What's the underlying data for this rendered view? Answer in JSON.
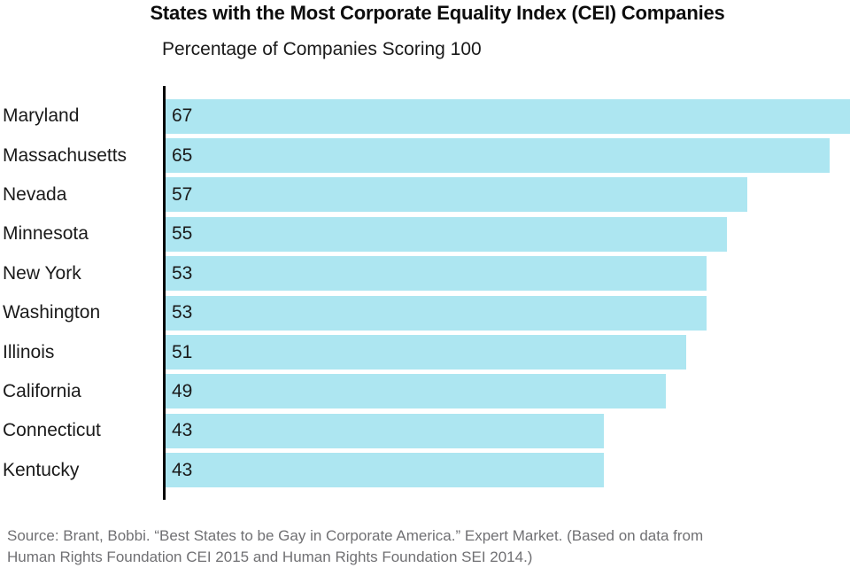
{
  "title": "States with the Most Corporate Equality Index (CEI) Companies",
  "subtitle": "Percentage of Companies Scoring 100",
  "source_line1": "Source: Brant, Bobbi. “Best States to be Gay in Corporate America.” Expert Market. (Based on data from",
  "source_line2": "Human Rights Foundation CEI 2015 and Human Rights Foundation SEI 2014.)",
  "colors": {
    "bar_fill": "#ADE6F1",
    "axis": "#000000",
    "label_text": "#1a1a1a",
    "source_text": "#707073"
  },
  "chart_data": {
    "type": "bar",
    "orientation": "horizontal",
    "title": "States with the Most Corporate Equality Index (CEI) Companies",
    "subtitle": "Percentage of Companies Scoring 100",
    "categories": [
      "Maryland",
      "Massachusetts",
      "Nevada",
      "Minnesota",
      "New York",
      "Washington",
      "Illinois",
      "California",
      "Connecticut",
      "Kentucky"
    ],
    "values": [
      67,
      65,
      57,
      55,
      53,
      53,
      51,
      49,
      43,
      43
    ],
    "xlabel": "",
    "ylabel": "",
    "xlim": [
      0,
      67
    ],
    "grid": false,
    "legend": "none",
    "value_labels": "inside-left",
    "source": "Source: Brant, Bobbi. “Best States to be Gay in Corporate America.” Expert Market. (Based on data from Human Rights Foundation CEI 2015 and Human Rights Foundation SEI 2014.)"
  }
}
